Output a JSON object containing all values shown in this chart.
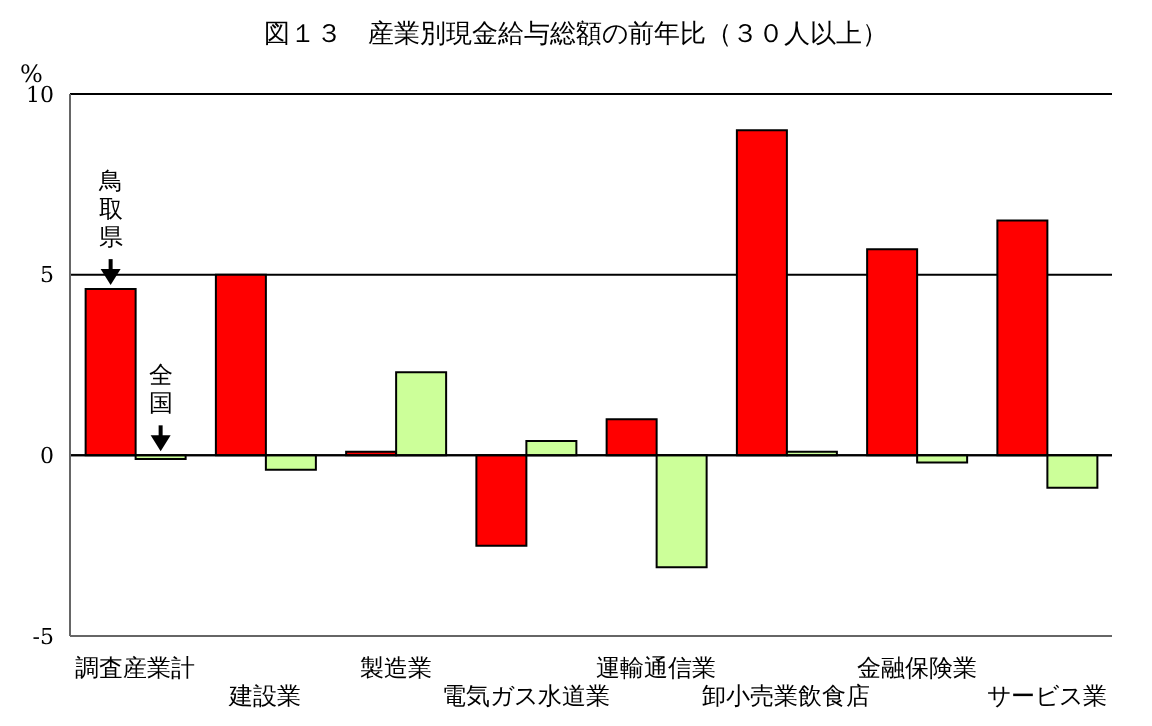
{
  "chart_data": {
    "type": "bar",
    "title": "図１３　産業別現金給与総額の前年比（３０人以上）",
    "ylabel": "%",
    "categories": [
      "調査産業計",
      "建設業",
      "製造業",
      "電気ガス水道業",
      "運輸通信業",
      "卸小売業飲食店",
      "金融保険業",
      "サービス業"
    ],
    "series": [
      {
        "name": "鳥取県",
        "color": "#ff0000",
        "values": [
          4.6,
          5.0,
          0.1,
          -2.5,
          1.0,
          9.0,
          5.7,
          6.5
        ]
      },
      {
        "name": "全国",
        "color": "#ccff99",
        "values": [
          -0.1,
          -0.4,
          2.3,
          0.4,
          -3.1,
          0.1,
          -0.2,
          -0.9
        ]
      }
    ],
    "ylim": [
      -5,
      10
    ],
    "yticks": [
      -5,
      0,
      5,
      10
    ],
    "grid": "y",
    "legend": false
  }
}
